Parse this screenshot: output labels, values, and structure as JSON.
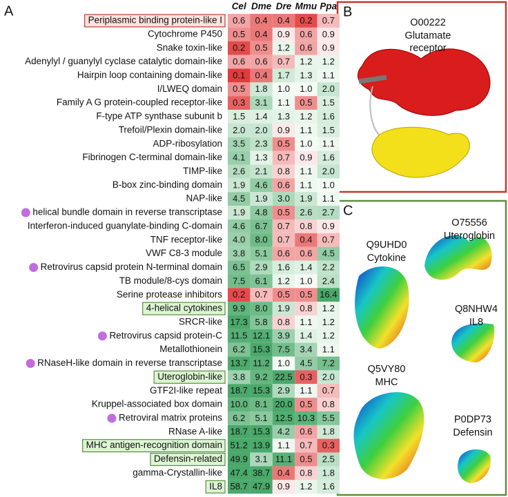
{
  "panels": {
    "a": "A",
    "b": "B",
    "c": "C"
  },
  "table": {
    "columns": [
      "Cel",
      "Dme",
      "Dre",
      "Mmu",
      "Ppa"
    ],
    "rows": [
      {
        "label": "Periplasmic binding protein-like I",
        "values": [
          "0.6",
          "0.4",
          "0.4",
          "0.2",
          "0.7"
        ],
        "box": "#c0392b"
      },
      {
        "label": "Cytochrome P450",
        "values": [
          "0.5",
          "0.4",
          "0.9",
          "0.6",
          "0.9"
        ]
      },
      {
        "label": "Snake toxin-like",
        "values": [
          "0.2",
          "0.5",
          "1.2",
          "0.6",
          "0.9"
        ]
      },
      {
        "label": "Adenylyl / guanylyl cyclase catalytic domain-like",
        "values": [
          "0.6",
          "0.6",
          "0.7",
          "1.2",
          "1.2"
        ]
      },
      {
        "label": "Hairpin loop containing domain-like",
        "values": [
          "0.1",
          "0.4",
          "1.7",
          "1.3",
          "1.1"
        ]
      },
      {
        "label": "I/LWEQ domain",
        "values": [
          "0.5",
          "1.8",
          "1.0",
          "1.0",
          "2.0"
        ]
      },
      {
        "label": "Family A G protein-coupled receptor-like",
        "values": [
          "0.3",
          "3.1",
          "1.1",
          "0.5",
          "1.5"
        ]
      },
      {
        "label": "F-type ATP synthase subunit b",
        "values": [
          "1.5",
          "1.4",
          "1.3",
          "1.2",
          "1.6"
        ]
      },
      {
        "label": "Trefoil/Plexin domain-like",
        "values": [
          "2.0",
          "2.0",
          "0.9",
          "1.1",
          "1.5"
        ]
      },
      {
        "label": "ADP-ribosylation",
        "values": [
          "3.5",
          "2.3",
          "0.5",
          "1.0",
          "1.1"
        ]
      },
      {
        "label": "Fibrinogen C-terminal domain-like",
        "values": [
          "4.1",
          "1.3",
          "0.7",
          "0.9",
          "1.6"
        ]
      },
      {
        "label": "TIMP-like",
        "values": [
          "2.6",
          "2.1",
          "0.8",
          "1.1",
          "2.0"
        ]
      },
      {
        "label": "B-box zinc-binding domain",
        "values": [
          "1.9",
          "4.6",
          "0.6",
          "1.1",
          "1.0"
        ]
      },
      {
        "label": "NAP-like",
        "values": [
          "4.5",
          "1.9",
          "3.0",
          "1.9",
          "1.1"
        ]
      },
      {
        "label": "helical bundle domain in reverse transcriptase",
        "values": [
          "1.9",
          "4.8",
          "0.5",
          "2.6",
          "2.7"
        ],
        "dot": "#c36be0"
      },
      {
        "label": "Interferon-induced guanylate-binding C-domain",
        "values": [
          "4.6",
          "6.7",
          "0.7",
          "0.8",
          "0.9"
        ]
      },
      {
        "label": "TNF receptor-like",
        "values": [
          "4.0",
          "8.0",
          "0.7",
          "0.4",
          "0.7"
        ]
      },
      {
        "label": "VWF C8-3 module",
        "values": [
          "3.8",
          "5.1",
          "0.6",
          "0.6",
          "4.5"
        ]
      },
      {
        "label": "Retrovirus capsid protein N-terminal domain",
        "values": [
          "6.5",
          "2.9",
          "1.6",
          "1.4",
          "2.2"
        ],
        "dot": "#c36be0"
      },
      {
        "label": "TB module/8-cys domain",
        "values": [
          "7.5",
          "6.1",
          "1.2",
          "1.0",
          "2.4"
        ]
      },
      {
        "label": "Serine protease inhibitors",
        "values": [
          "0.2",
          "0.7",
          "0.5",
          "0.5",
          "16.4"
        ]
      },
      {
        "label": "4-helical cytokines",
        "values": [
          "9.9",
          "8.0",
          "1.9",
          "0.8",
          "1.2"
        ],
        "box": "#5a8f3a"
      },
      {
        "label": "SRCR-like",
        "values": [
          "17.3",
          "5.8",
          "0.8",
          "1.1",
          "1.2"
        ]
      },
      {
        "label": "Retrovirus capsid protein-C",
        "values": [
          "11.5",
          "12.1",
          "3.9",
          "1.4",
          "1.2"
        ],
        "dot": "#c36be0"
      },
      {
        "label": "Metallothionein",
        "values": [
          "6.2",
          "15.3",
          "7.5",
          "3.4",
          "1.1"
        ]
      },
      {
        "label": "RNaseH-like domain in reverse transcriptase",
        "values": [
          "13.7",
          "11.2",
          "1.0",
          "4.5",
          "7.2"
        ],
        "dot": "#c36be0"
      },
      {
        "label": "Uteroglobin-like",
        "values": [
          "3.8",
          "9.2",
          "22.5",
          "0.3",
          "2.0"
        ],
        "box": "#5a8f3a"
      },
      {
        "label": "GTF2I-like repeat",
        "values": [
          "18.7",
          "15.3",
          "2.9",
          "1.1",
          "0.7"
        ]
      },
      {
        "label": "Kruppel-associated box domain",
        "values": [
          "10.0",
          "8.1",
          "20.0",
          "0.5",
          "0.8"
        ]
      },
      {
        "label": "Retroviral matrix proteins",
        "values": [
          "6.2",
          "5.1",
          "12.5",
          "10.3",
          "5.5"
        ],
        "dot": "#c36be0"
      },
      {
        "label": "RNase A-like",
        "values": [
          "18.7",
          "15.3",
          "4.2",
          "0.6",
          "1.8"
        ]
      },
      {
        "label": "MHC antigen-recognition domain",
        "values": [
          "51.2",
          "13.9",
          "1.1",
          "0.7",
          "0.3"
        ],
        "box": "#5a8f3a"
      },
      {
        "label": "Defensin-related",
        "values": [
          "49.9",
          "3.1",
          "11.1",
          "0.5",
          "2.5"
        ],
        "box": "#5a8f3a"
      },
      {
        "label": "gamma-Crystallin-like",
        "values": [
          "47.4",
          "38.7",
          "0.4",
          "0.8",
          "1.8"
        ]
      },
      {
        "label": "IL8",
        "values": [
          "58.7",
          "47.9",
          "0.9",
          "1.2",
          "1.6"
        ],
        "box": "#5a8f3a"
      }
    ]
  },
  "structures": {
    "b": [
      {
        "id": "O00222",
        "name": "Glutamate receptor"
      }
    ],
    "c": [
      {
        "id": "Q9UHD0",
        "name": "Cytokine"
      },
      {
        "id": "O75556",
        "name": "Uteroglobin"
      },
      {
        "id": "Q8NHW4",
        "name": "IL8"
      },
      {
        "id": "Q5VY80",
        "name": "MHC"
      },
      {
        "id": "P0DP73",
        "name": "Defensin"
      }
    ]
  }
}
